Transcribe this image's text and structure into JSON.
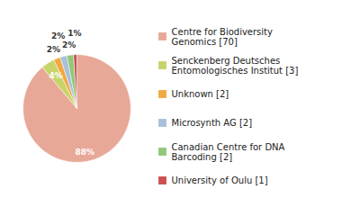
{
  "chart_data": {
    "type": "pie",
    "categories": [
      "Centre for Biodiversity\nGenomics [70]",
      "Senckenberg Deutsches\nEntomologisches Institut [3]",
      "Unknown [2]",
      "Microsynth AG [2]",
      "Canadian Centre for DNA\nBarcoding [2]",
      "University of Oulu [1]"
    ],
    "values": [
      88,
      4,
      2,
      2,
      2,
      1
    ],
    "value_labels": [
      "88%",
      "4%",
      "2%",
      "2%",
      "2%",
      "1%"
    ],
    "colors": [
      "#E8A898",
      "#C8D46A",
      "#F0A840",
      "#A8C0D8",
      "#90C878",
      "#CC5050"
    ],
    "data_labels": true,
    "legend": "right"
  }
}
